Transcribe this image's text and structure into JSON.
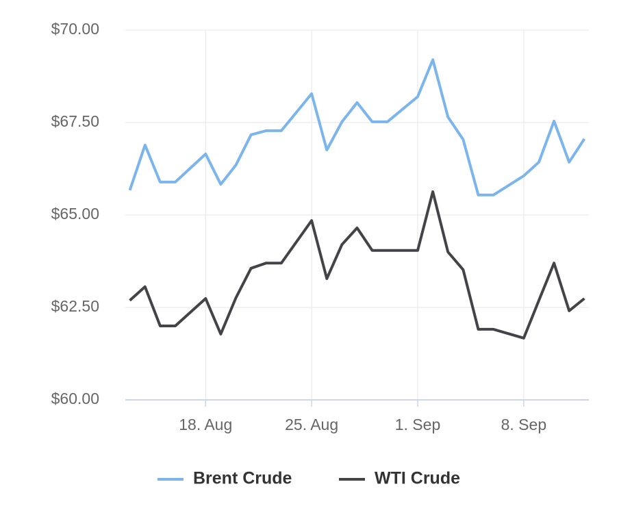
{
  "chart_data": {
    "type": "line",
    "x": [
      13,
      14,
      15,
      16,
      18,
      19,
      20,
      21,
      22,
      23,
      25,
      26,
      27,
      28,
      29,
      30,
      32,
      33,
      34,
      35,
      36,
      37,
      39,
      40,
      41,
      42,
      43
    ],
    "series": [
      {
        "name": "Brent Crude",
        "color": "#7cb5ec",
        "values": [
          65.67,
          66.89,
          65.89,
          65.89,
          66.65,
          65.83,
          66.35,
          67.17,
          67.28,
          67.28,
          68.28,
          66.76,
          67.52,
          68.04,
          67.52,
          67.52,
          68.2,
          69.2,
          67.65,
          67.04,
          65.54,
          65.54,
          66.06,
          66.43,
          67.54,
          66.43,
          67.06
        ]
      },
      {
        "name": "WTI Crude",
        "color": "#434348",
        "values": [
          62.69,
          63.06,
          62.0,
          62.0,
          62.74,
          61.78,
          62.76,
          63.56,
          63.7,
          63.7,
          64.85,
          63.28,
          64.2,
          64.65,
          64.04,
          64.04,
          64.04,
          65.63,
          64.0,
          63.52,
          61.91,
          61.91,
          61.67,
          62.69,
          63.7,
          62.41,
          62.74
        ]
      }
    ],
    "xlim": [
      12.7,
      43.3
    ],
    "xticks": [
      {
        "value": 18,
        "label": "18. Aug"
      },
      {
        "value": 25,
        "label": "25. Aug"
      },
      {
        "value": 32,
        "label": "1. Sep"
      },
      {
        "value": 39,
        "label": "8. Sep"
      }
    ],
    "ylim": [
      60,
      70
    ],
    "yticks": [
      {
        "value": 60,
        "label": "$60.00"
      },
      {
        "value": 62.5,
        "label": "$62.50"
      },
      {
        "value": 65,
        "label": "$65.00"
      },
      {
        "value": 67.5,
        "label": "$67.50"
      },
      {
        "value": 70,
        "label": "$70.00"
      }
    ],
    "grid": true
  }
}
